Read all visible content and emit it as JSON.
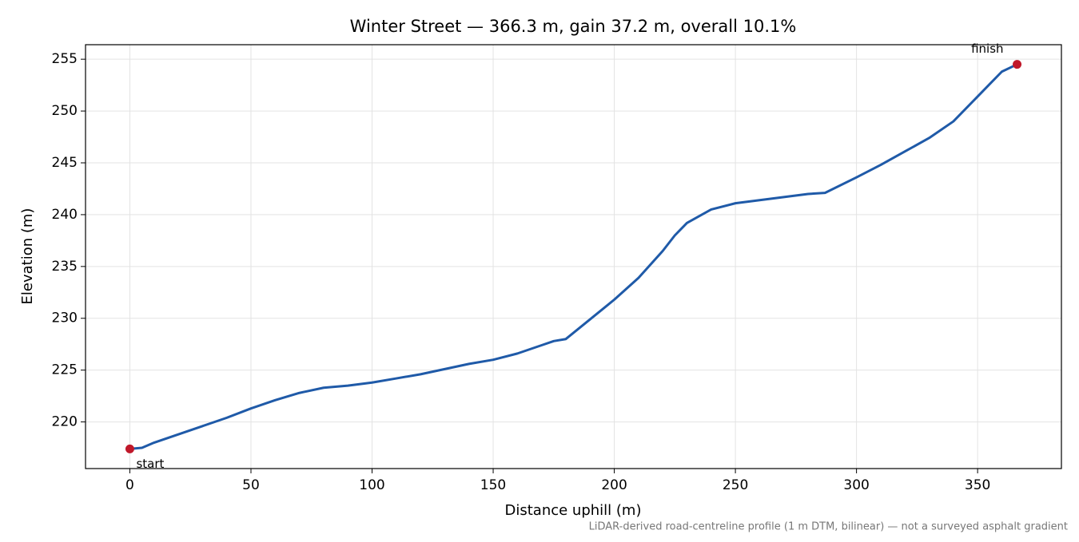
{
  "chart_data": {
    "type": "line",
    "title": "Winter Street — 366.3 m, gain 37.2 m, overall 10.1%",
    "xlabel": "Distance uphill (m)",
    "ylabel": "Elevation (m)",
    "note": "LiDAR-derived road-centreline profile (1 m DTM, bilinear) — not a surveyed asphalt gradient",
    "x": [
      0,
      5,
      10,
      20,
      30,
      40,
      50,
      60,
      70,
      80,
      90,
      100,
      110,
      120,
      130,
      140,
      150,
      160,
      170,
      175,
      180,
      190,
      200,
      210,
      220,
      225,
      230,
      240,
      250,
      260,
      270,
      280,
      287,
      300,
      310,
      320,
      330,
      340,
      350,
      355,
      360,
      366.3
    ],
    "series": [
      {
        "name": "Elevation",
        "color": "#1f5aa8",
        "values": [
          217.4,
          217.5,
          218.0,
          218.8,
          219.6,
          220.4,
          221.3,
          222.1,
          222.8,
          223.3,
          223.5,
          223.8,
          224.2,
          224.6,
          225.1,
          225.6,
          226.0,
          226.6,
          227.4,
          227.8,
          228.0,
          229.9,
          231.8,
          233.9,
          236.5,
          238.0,
          239.2,
          240.5,
          241.1,
          241.4,
          241.7,
          242.0,
          242.1,
          243.6,
          244.8,
          246.1,
          247.4,
          249.0,
          251.4,
          252.6,
          253.8,
          254.5
        ]
      }
    ],
    "markers": {
      "x": [
        0,
        366.3
      ],
      "y": [
        217.4,
        254.5
      ],
      "labels": [
        "start",
        "finish"
      ],
      "color": "#c0182a"
    },
    "xlim": [
      -18.3,
      384.6
    ],
    "ylim": [
      215.5,
      256.4
    ],
    "xticks": [
      0,
      50,
      100,
      150,
      200,
      250,
      300,
      350
    ],
    "yticks": [
      220,
      225,
      230,
      235,
      240,
      245,
      250,
      255
    ],
    "grid": true
  }
}
